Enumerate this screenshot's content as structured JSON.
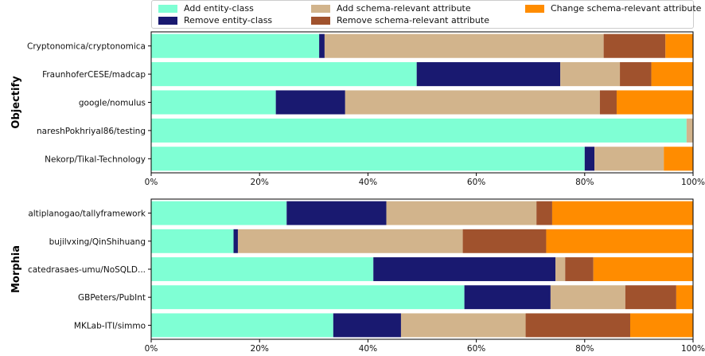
{
  "colors": {
    "add_entity": "#7fffd4",
    "remove_entity": "#191970",
    "add_attr": "#d2b48c",
    "remove_attr": "#a0522d",
    "change_attr": "#ff8c00"
  },
  "legend": [
    {
      "label": "Add entity-class",
      "color_key": "add_entity"
    },
    {
      "label": "Remove entity-class",
      "color_key": "remove_entity"
    },
    {
      "label": "Add schema-relevant attribute",
      "color_key": "add_attr"
    },
    {
      "label": "Remove schema-relevant attribute",
      "color_key": "remove_attr"
    },
    {
      "label": "Change schema-relevant attribute",
      "color_key": "change_attr"
    }
  ],
  "chart_data": [
    {
      "type": "bar",
      "orientation": "horizontal",
      "stacked": true,
      "group_label": "Objectify",
      "categories": [
        "Cryptonomica/cryptonomica",
        "FraunhoferCESE/madcap",
        "google/nomulus",
        "nareshPokhriyal86/testing",
        "Nekorp/Tikal-Technology"
      ],
      "series": [
        {
          "name": "Add entity-class",
          "values": [
            31.0,
            49.0,
            23.0,
            98.8,
            80.0
          ]
        },
        {
          "name": "Remove entity-class",
          "values": [
            1.0,
            26.5,
            12.8,
            0.0,
            1.8
          ]
        },
        {
          "name": "Add schema-relevant attribute",
          "values": [
            51.5,
            11.0,
            47.0,
            1.2,
            12.8
          ]
        },
        {
          "name": "Remove schema-relevant attribute",
          "values": [
            11.4,
            5.8,
            3.1,
            0.0,
            0.0
          ]
        },
        {
          "name": "Change schema-relevant attribute",
          "values": [
            5.1,
            7.7,
            14.1,
            0.0,
            5.4
          ]
        }
      ],
      "xticks": [
        "0%",
        "20%",
        "40%",
        "60%",
        "80%",
        "100%"
      ],
      "xlim": [
        0,
        100
      ]
    },
    {
      "type": "bar",
      "orientation": "horizontal",
      "stacked": true,
      "group_label": "Morphia",
      "categories": [
        "altiplanogao/tallyframework",
        "bujilvxing/QinShihuang",
        "catedrasaes-umu/NoSQLD...",
        "GBPeters/PubInt",
        "MKLab-ITI/simmo"
      ],
      "series": [
        {
          "name": "Add entity-class",
          "values": [
            25.0,
            15.2,
            41.0,
            57.8,
            33.6
          ]
        },
        {
          "name": "Remove entity-class",
          "values": [
            18.4,
            0.8,
            33.6,
            15.9,
            12.5
          ]
        },
        {
          "name": "Add schema-relevant attribute",
          "values": [
            27.7,
            41.5,
            1.8,
            13.8,
            23.0
          ]
        },
        {
          "name": "Remove schema-relevant attribute",
          "values": [
            2.9,
            15.4,
            5.2,
            9.4,
            19.3
          ]
        },
        {
          "name": "Change schema-relevant attribute",
          "values": [
            26.0,
            27.1,
            18.4,
            3.1,
            11.6
          ]
        }
      ],
      "xticks": [
        "0%",
        "20%",
        "40%",
        "60%",
        "80%",
        "100%"
      ],
      "xlim": [
        0,
        100
      ]
    }
  ]
}
